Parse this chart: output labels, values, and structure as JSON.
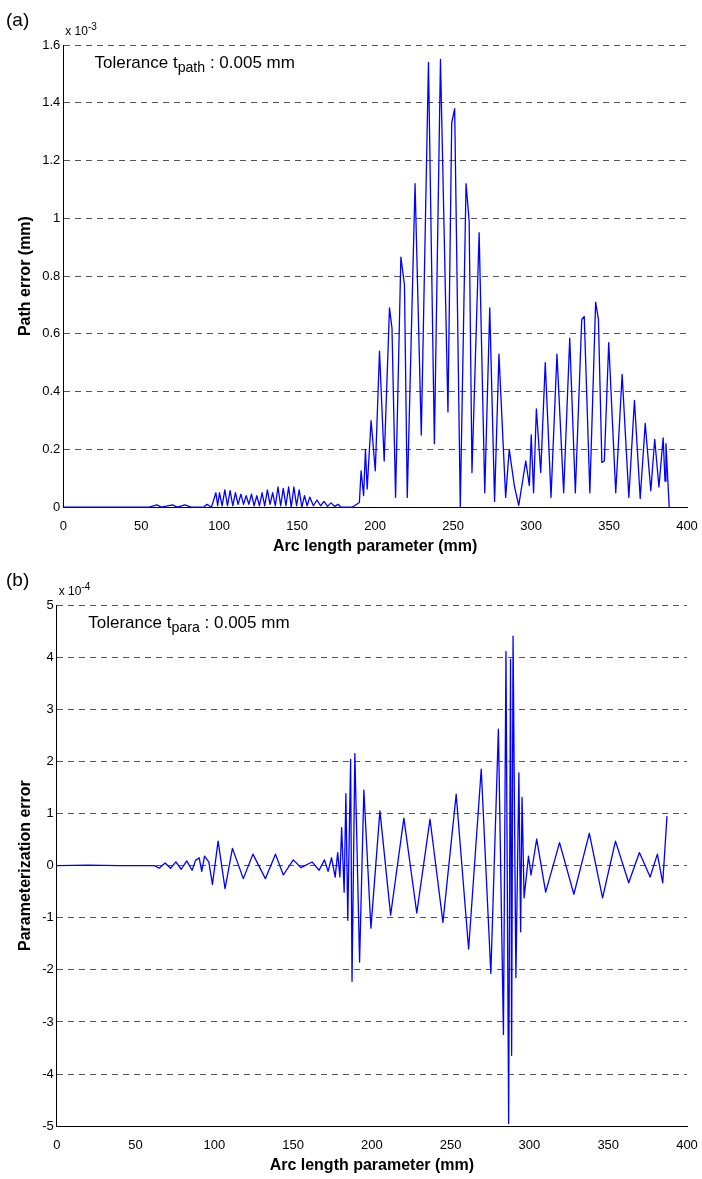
{
  "chart_data": [
    {
      "type": "line",
      "xlabel": "Arc length parameter (mm)",
      "ylabel": "Path error (mm)",
      "annotations": [
        "(a)",
        "Tolerance t$_{path}$ : 0.005 mm",
        "x 10$^{-3}$"
      ],
      "color": "#0000ff",
      "grid": "y",
      "xlim": [
        0,
        400
      ],
      "xticks": [
        0,
        50,
        100,
        150,
        200,
        250,
        300,
        350,
        400
      ],
      "ylim": [
        0,
        1.6
      ],
      "yticks": [
        0,
        0.2,
        0.4,
        0.6,
        0.8,
        1,
        1.2,
        1.4,
        1.6
      ],
      "x": [
        0,
        55,
        60,
        63,
        70,
        73,
        78,
        82,
        90,
        92.2,
        95,
        97.9,
        99,
        100.2,
        101.9,
        103.6,
        105.3,
        107,
        108.7,
        110.4,
        112.1,
        113.9,
        115.6,
        117.3,
        119,
        120.7,
        122.4,
        124.1,
        125.8,
        127.5,
        129.2,
        130.9,
        132.6,
        134.3,
        136,
        137.7,
        139.4,
        141.1,
        142.8,
        144.5,
        146.2,
        147.9,
        149.6,
        151.3,
        153,
        154.7,
        156.4,
        158.1,
        160.4,
        162.7,
        165,
        167.2,
        169.5,
        171.7,
        174,
        176.3,
        178,
        184.2,
        185.3,
        189.9,
        191.0,
        192.6,
        193.8,
        194.9,
        197.4,
        200.1,
        202.8,
        205.8,
        209.2,
        210.8,
        213.1,
        216.5,
        218.8,
        220.6,
        225.6,
        229.6,
        234.2,
        238.0,
        241.9,
        246.7,
        249.1,
        251.0,
        254.6,
        258.3,
        260.3,
        262.1,
        266.7,
        270.3,
        273.5,
        276.6,
        279.4,
        283.7,
        286.0,
        289.4,
        292.1,
        296.6,
        298.9,
        300.1,
        301.6,
        303.4,
        306.2,
        309.1,
        312.8,
        316.6,
        320.9,
        324.8,
        328.4,
        332.5,
        334.1,
        337.7,
        341.4,
        343.2,
        345.4,
        347.0,
        349.8,
        354.3,
        358.4,
        362.7,
        366.3,
        370.0,
        373.2,
        376.8,
        379.3,
        382.0,
        384.7,
        385.9,
        386.5,
        388.6
      ],
      "values": [
        0,
        0,
        0.008,
        0,
        0.008,
        0,
        0.008,
        0,
        0,
        0.01,
        0,
        0.05,
        0.005,
        0.05,
        0.005,
        0.06,
        0.005,
        0.057,
        0.005,
        0.05,
        0.01,
        0.045,
        0.01,
        0.04,
        0.01,
        0.045,
        0.005,
        0.04,
        0.005,
        0.05,
        0.005,
        0.06,
        0.01,
        0.05,
        0.005,
        0.07,
        0.005,
        0.065,
        0.005,
        0.07,
        0,
        0.07,
        0.005,
        0.06,
        0,
        0.04,
        0.005,
        0.035,
        0.005,
        0.025,
        0.005,
        0.02,
        0.003,
        0.015,
        0.003,
        0.01,
        0,
        0,
        0,
        0.016,
        0.126,
        0.04,
        0.2,
        0.063,
        0.3,
        0.126,
        0.54,
        0.16,
        0.69,
        0.62,
        0.034,
        0.866,
        0.77,
        0.034,
        1.12,
        0.25,
        1.54,
        0.22,
        1.55,
        0.33,
        1.33,
        1.38,
        0,
        1.12,
        0.99,
        0.12,
        0.95,
        0.05,
        0.69,
        0.02,
        0.53,
        0.034,
        0.2,
        0.07,
        0.006,
        0.16,
        0.075,
        0.25,
        0.05,
        0.34,
        0.12,
        0.5,
        0.034,
        0.53,
        0.05,
        0.585,
        0.05,
        0.65,
        0.66,
        0.05,
        0.71,
        0.65,
        0.155,
        0.16,
        0.57,
        0.05,
        0.46,
        0.034,
        0.37,
        0.03,
        0.29,
        0.057,
        0.235,
        0.07,
        0.24,
        0.09,
        0.22,
        0
      ]
    },
    {
      "type": "line",
      "xlabel": "Arc length parameter (mm)",
      "ylabel": "Parameterization error",
      "annotations": [
        "(b)",
        "Tolerance t$_{para}$ : 0.005 mm",
        "x 10$^{-4}$"
      ],
      "color": "#0000ff",
      "grid": "y",
      "xlim": [
        0,
        400
      ],
      "xticks": [
        0,
        50,
        100,
        150,
        200,
        250,
        300,
        350,
        400
      ],
      "ylim": [
        -5,
        5
      ],
      "yticks": [
        -5,
        -4,
        -3,
        -2,
        -1,
        0,
        1,
        2,
        3,
        4,
        5
      ],
      "x": [
        0,
        20,
        40,
        62,
        65,
        68.8,
        72.2,
        75.6,
        79,
        82.5,
        85.9,
        88.1,
        90.4,
        92.0,
        93.8,
        96.5,
        98.8,
        102.4,
        106.8,
        111.5,
        118.4,
        124.5,
        132.4,
        138.8,
        143.8,
        150.1,
        155.1,
        162.0,
        166.5,
        169.9,
        172.2,
        174.4,
        176.7,
        178.3,
        179.7,
        180.8,
        182.4,
        183.5,
        184.7,
        186.5,
        187.4,
        189.2,
        192.2,
        194.9,
        199.4,
        205.1,
        211.9,
        220.3,
        228.5,
        236.9,
        245.1,
        253.5,
        261.4,
        269.4,
        275.5,
        280.3,
        283.5,
        285.1,
        286.8,
        288.0,
        288.7,
        289.6,
        291.4,
        293.3,
        294.4,
        295.3,
        296.6,
        299.4,
        301.0,
        304.6,
        310.3,
        319.1,
        328.2,
        338.0,
        346.4,
        354.6,
        363.0,
        369.8,
        376.6,
        381.2,
        384.6,
        387.3
      ],
      "values": [
        0,
        0.01,
        0,
        0,
        -0.05,
        0.05,
        -0.05,
        0.07,
        -0.07,
        0.09,
        -0.09,
        0.1,
        0.15,
        -0.11,
        0.18,
        0.07,
        -0.36,
        0.47,
        -0.44,
        0.33,
        -0.25,
        0.22,
        -0.25,
        0.22,
        -0.18,
        0.11,
        -0.04,
        0.07,
        -0.09,
        0.11,
        -0.11,
        0.15,
        -0.22,
        0.25,
        -0.22,
        0.73,
        -0.51,
        1.38,
        -1.05,
        2.04,
        -2.22,
        2.15,
        -1.85,
        1.45,
        -1.2,
        1.05,
        -0.95,
        0.91,
        -0.91,
        0.89,
        -1.09,
        1.37,
        -1.6,
        1.85,
        -2.07,
        2.62,
        -3.24,
        4.11,
        -4.95,
        3.96,
        -3.64,
        4.4,
        -2.15,
        1.78,
        -1.27,
        1.31,
        -0.62,
        0.18,
        -0.18,
        0.51,
        -0.51,
        0.44,
        -0.55,
        0.62,
        -0.62,
        0.47,
        -0.33,
        0.25,
        -0.22,
        0.22,
        -0.33,
        0.95
      ]
    }
  ]
}
